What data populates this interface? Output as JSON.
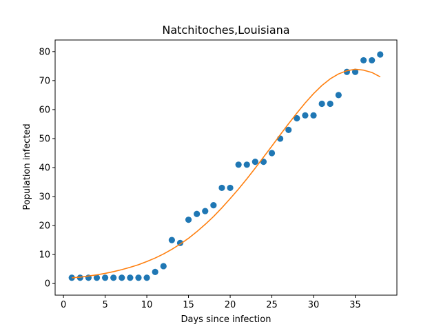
{
  "chart_data": {
    "type": "scatter",
    "title": "Natchitoches,Louisiana",
    "xlabel": "Days since infection",
    "ylabel": "Population infected",
    "xlim": [
      -1,
      40
    ],
    "ylim": [
      -4,
      84
    ],
    "xticks": [
      0,
      5,
      10,
      15,
      20,
      25,
      30,
      35
    ],
    "yticks": [
      0,
      10,
      20,
      30,
      40,
      50,
      60,
      70,
      80
    ],
    "grid": false,
    "legend": "none",
    "series": [
      {
        "kind": "scatter",
        "color": "#1f77b4",
        "x": [
          1,
          2,
          3,
          4,
          5,
          6,
          7,
          8,
          9,
          10,
          11,
          12,
          13,
          14,
          15,
          16,
          17,
          18,
          19,
          20,
          21,
          22,
          23,
          24,
          25,
          26,
          27,
          28,
          29,
          30,
          31,
          32,
          33,
          34,
          35,
          36,
          37,
          38
        ],
        "y": [
          2,
          2,
          2,
          2,
          2,
          2,
          2,
          2,
          2,
          2,
          4,
          6,
          15,
          14,
          22,
          24,
          25,
          27,
          33,
          33,
          41,
          41,
          42,
          42,
          45,
          50,
          53,
          57,
          58,
          58,
          62,
          62,
          65,
          73,
          73,
          77,
          77,
          79
        ]
      },
      {
        "kind": "line",
        "color": "#ff7f0e",
        "x": [
          1,
          2,
          3,
          4,
          5,
          6,
          7,
          8,
          9,
          10,
          11,
          12,
          13,
          14,
          15,
          16,
          17,
          18,
          19,
          20,
          21,
          22,
          23,
          24,
          25,
          26,
          27,
          28,
          29,
          30,
          31,
          32,
          33,
          34,
          35,
          36,
          37,
          38
        ],
        "y": [
          2.0,
          2.2,
          2.6,
          3.0,
          3.5,
          4.1,
          4.8,
          5.6,
          6.5,
          7.6,
          8.8,
          10.2,
          11.8,
          13.6,
          15.6,
          17.9,
          20.4,
          23.1,
          26.1,
          29.3,
          32.6,
          36.1,
          39.8,
          43.6,
          47.4,
          51.3,
          55.1,
          58.8,
          62.3,
          65.5,
          68.3,
          70.6,
          72.3,
          73.4,
          73.9,
          73.6,
          72.8,
          71.3
        ]
      }
    ]
  }
}
